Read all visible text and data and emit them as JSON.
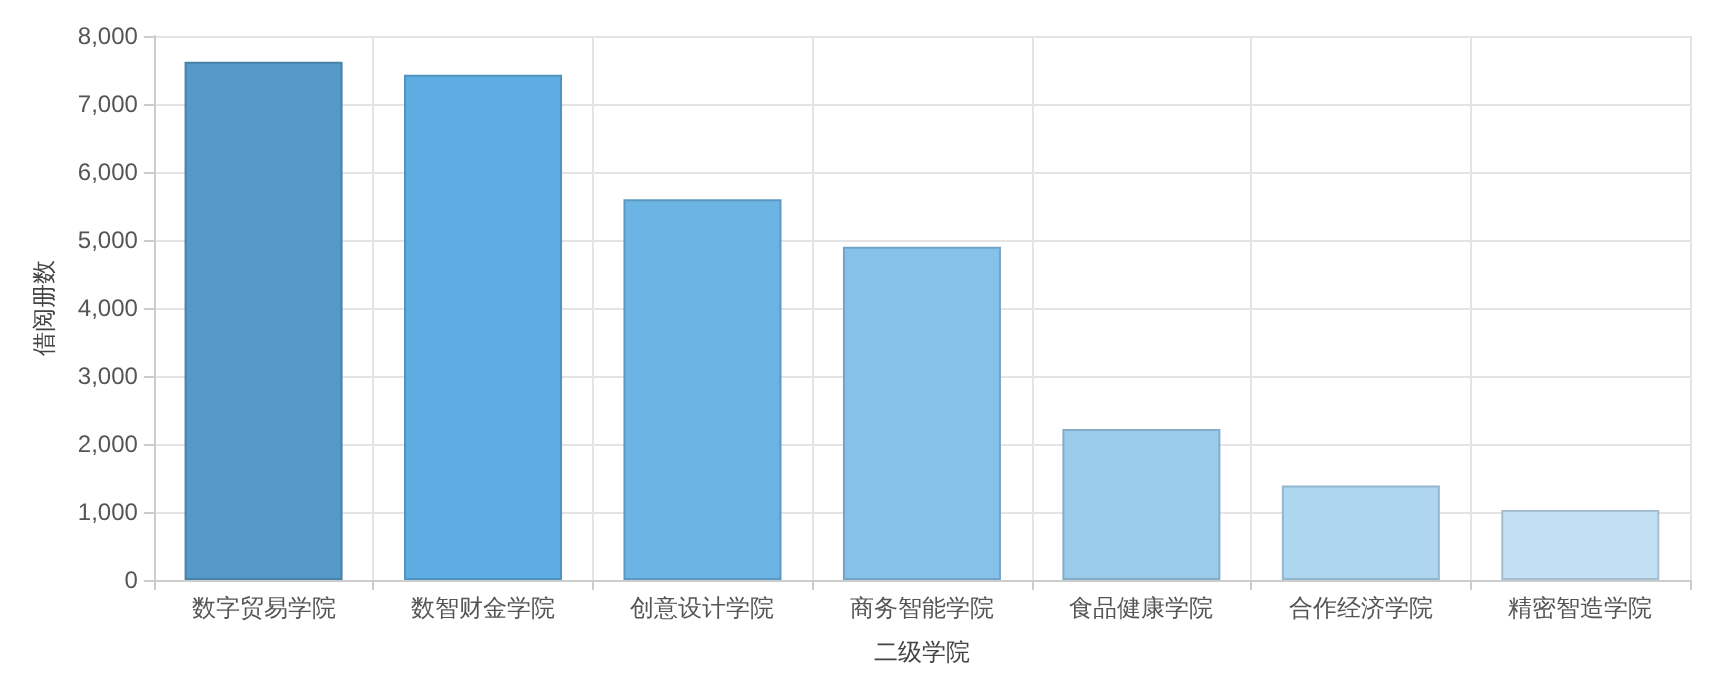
{
  "chart_data": {
    "type": "bar",
    "xlabel": "二级学院",
    "ylabel": "借阅册数",
    "categories": [
      "数字贸易学院",
      "数智财金学院",
      "创意设计学院",
      "商务智能学院",
      "食品健康学院",
      "合作经济学院",
      "精密智造学院"
    ],
    "values": [
      7620,
      7430,
      5600,
      4900,
      2220,
      1390,
      1030
    ],
    "colors": [
      "#5499c7",
      "#5dade2",
      "#6cb4e4",
      "#85c1e9",
      "#9bcbeb",
      "#aed6f1",
      "#c2e0f4"
    ],
    "ylim": [
      0,
      8000
    ],
    "yticks": [
      0,
      {
        "value": 1000,
        "label": "1,000"
      },
      {
        "value": 2000,
        "label": "2,000"
      },
      {
        "value": 3000,
        "label": "3,000"
      },
      {
        "value": 4000,
        "label": "4,000"
      },
      {
        "value": 5000,
        "label": "5,000"
      },
      {
        "value": 6000,
        "label": "6,000"
      },
      {
        "value": 7000,
        "label": "7,000"
      },
      {
        "value": 8000,
        "label": "8,000"
      }
    ],
    "grid": true
  }
}
